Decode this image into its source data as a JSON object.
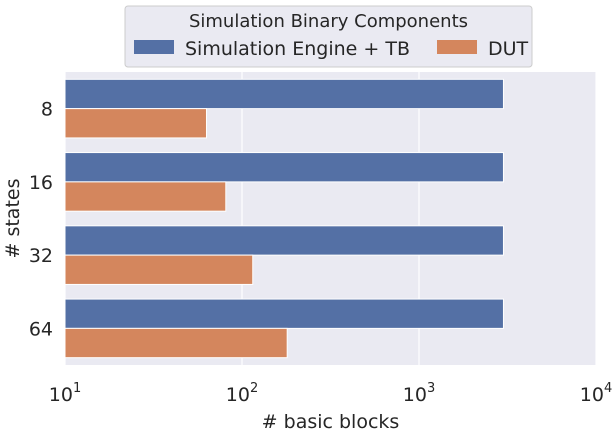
{
  "chart_data": {
    "type": "bar",
    "orientation": "horizontal",
    "xscale": "log",
    "xlim": [
      10,
      10000
    ],
    "xticks": [
      10,
      100,
      1000,
      10000
    ],
    "xtick_labels": [
      {
        "base": "10",
        "exp": "1"
      },
      {
        "base": "10",
        "exp": "2"
      },
      {
        "base": "10",
        "exp": "3"
      },
      {
        "base": "10",
        "exp": "4"
      }
    ],
    "xlabel": "# basic blocks",
    "ylabel": "# states",
    "categories": [
      "8",
      "16",
      "32",
      "64"
    ],
    "series": [
      {
        "name": "Simulation Engine + TB",
        "color": "#5470a5",
        "values": [
          3000,
          3000,
          3000,
          3000
        ]
      },
      {
        "name": "DUT",
        "color": "#d4865d",
        "values": [
          63,
          81,
          115,
          180
        ]
      }
    ],
    "legend": {
      "title": "Simulation Binary Components",
      "placement": "top-center",
      "columns": 2
    },
    "grid": true,
    "background": "#eaeaf2"
  }
}
